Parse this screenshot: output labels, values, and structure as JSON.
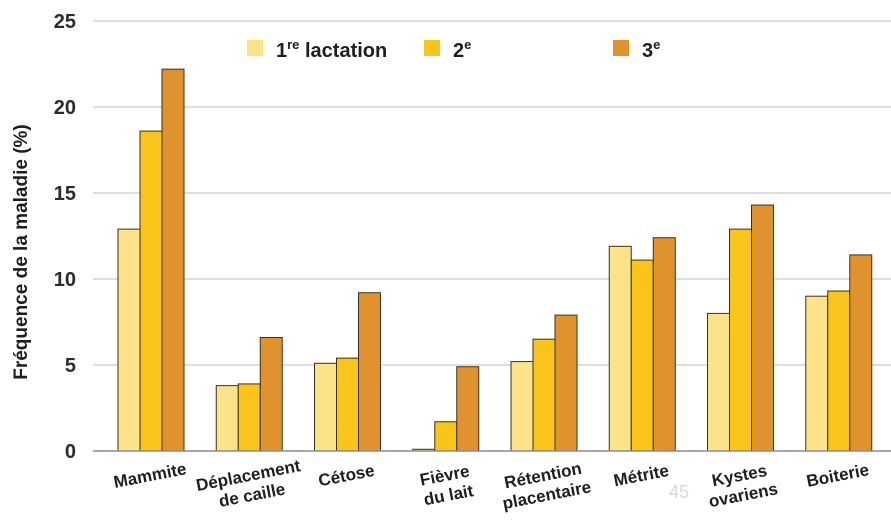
{
  "chart_data": {
    "type": "bar",
    "ylabel": "Fréquence de la maladie (%)",
    "xlabel": "",
    "ylim": [
      0,
      25
    ],
    "yticks": [
      "0",
      "5",
      "10",
      "15",
      "20",
      "25"
    ],
    "grid": true,
    "legend_position": "top",
    "categories": [
      [
        "Mammite"
      ],
      [
        "Déplacement",
        "de caille"
      ],
      [
        "Cétose"
      ],
      [
        "Fièvre",
        "du lait"
      ],
      [
        "Rétention",
        "placentaire"
      ],
      [
        "Métrite"
      ],
      [
        "Kystes",
        "ovariens"
      ],
      [
        "Boiterie"
      ]
    ],
    "series": [
      {
        "name": "1re lactation",
        "name_base": "1",
        "name_sup": "re",
        "name_rest": " lactation",
        "color": "#FCE38A",
        "values": [
          12.9,
          3.8,
          5.1,
          0.1,
          5.2,
          11.9,
          8.0,
          9.0
        ]
      },
      {
        "name": "2e",
        "name_base": "2",
        "name_sup": "e",
        "name_rest": "",
        "color": "#F9C51A",
        "values": [
          18.6,
          3.9,
          5.4,
          1.7,
          6.5,
          11.1,
          12.9,
          9.3
        ]
      },
      {
        "name": "3e",
        "name_base": "3",
        "name_sup": "e",
        "name_rest": "",
        "color": "#E0922E",
        "values": [
          22.2,
          6.6,
          9.2,
          4.9,
          7.9,
          12.4,
          14.3,
          11.4
        ]
      }
    ],
    "page_number": "45"
  }
}
